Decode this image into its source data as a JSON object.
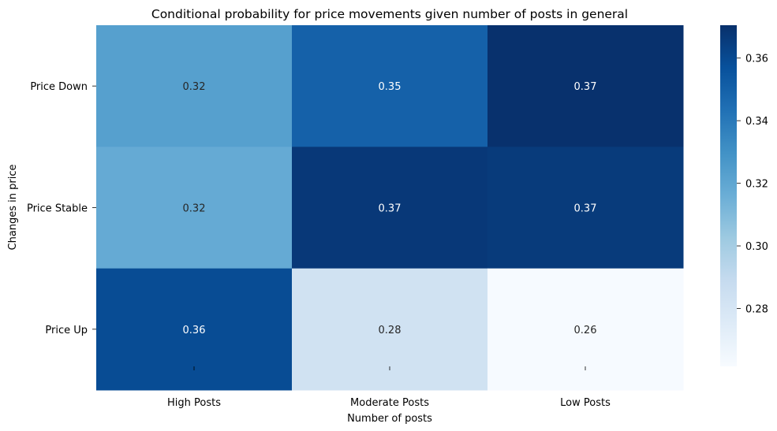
{
  "chart_data": {
    "type": "heatmap",
    "title": "Conditional probability for price movements given number of posts in general",
    "xlabel": "Number of posts",
    "ylabel": "Changes in price",
    "x_categories": [
      "High Posts",
      "Moderate Posts",
      "Low Posts"
    ],
    "y_categories": [
      "Price Down",
      "Price Stable",
      "Price Up"
    ],
    "values": [
      [
        0.323,
        0.35,
        0.37
      ],
      [
        0.318,
        0.367,
        0.366
      ],
      [
        0.359,
        0.283,
        0.262
      ]
    ],
    "annotations": [
      [
        "0.32",
        "0.35",
        "0.37"
      ],
      [
        "0.32",
        "0.37",
        "0.37"
      ],
      [
        "0.36",
        "0.28",
        "0.26"
      ]
    ],
    "colormap": "Blues",
    "colorbar": {
      "range": [
        0.2615,
        0.3705
      ],
      "ticks": [
        "0.28",
        "0.30",
        "0.32",
        "0.34",
        "0.36"
      ],
      "tick_values": [
        0.28,
        0.3,
        0.32,
        0.34,
        0.36
      ]
    }
  }
}
